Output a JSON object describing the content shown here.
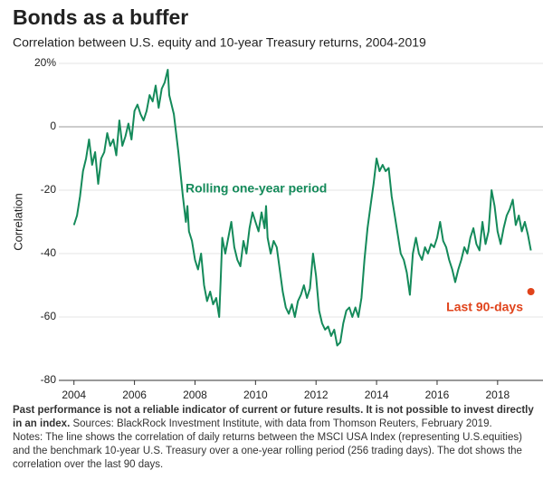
{
  "chart_data": {
    "type": "line",
    "title": "Bonds as a buffer",
    "subtitle": "Correlation between U.S. equity and 10-year Treasury returns, 2004-2019",
    "y_label": "Correlation",
    "xlim": [
      2003.5,
      2019.5
    ],
    "xticks": [
      2004,
      2006,
      2008,
      2010,
      2012,
      2014,
      2016,
      2018
    ],
    "ylim": [
      -80,
      20
    ],
    "yticks": [
      {
        "value": 20,
        "label": "20%"
      },
      0,
      -20,
      -40,
      -60,
      -80
    ],
    "grid": true,
    "series": [
      {
        "name": "Rolling one-year period",
        "color": "#148a5a",
        "x": [
          2004.0,
          2004.1,
          2004.2,
          2004.3,
          2004.4,
          2004.5,
          2004.6,
          2004.7,
          2004.8,
          2004.9,
          2005.0,
          2005.1,
          2005.2,
          2005.3,
          2005.4,
          2005.5,
          2005.6,
          2005.7,
          2005.8,
          2005.9,
          2006.0,
          2006.1,
          2006.2,
          2006.3,
          2006.4,
          2006.5,
          2006.6,
          2006.7,
          2006.8,
          2006.9,
          2007.0,
          2007.1,
          2007.15,
          2007.3,
          2007.45,
          2007.6,
          2007.7,
          2007.75,
          2007.8,
          2007.9,
          2008.0,
          2008.1,
          2008.2,
          2008.3,
          2008.4,
          2008.5,
          2008.6,
          2008.7,
          2008.8,
          2008.85,
          2008.9,
          2009.0,
          2009.2,
          2009.3,
          2009.4,
          2009.5,
          2009.6,
          2009.7,
          2009.8,
          2009.9,
          2010.0,
          2010.1,
          2010.2,
          2010.3,
          2010.35,
          2010.4,
          2010.5,
          2010.6,
          2010.7,
          2010.8,
          2010.9,
          2011.0,
          2011.1,
          2011.2,
          2011.3,
          2011.4,
          2011.5,
          2011.6,
          2011.7,
          2011.8,
          2011.9,
          2012.0,
          2012.1,
          2012.2,
          2012.3,
          2012.4,
          2012.5,
          2012.6,
          2012.7,
          2012.8,
          2012.9,
          2013.0,
          2013.1,
          2013.2,
          2013.3,
          2013.4,
          2013.5,
          2013.6,
          2013.7,
          2013.8,
          2013.9,
          2014.0,
          2014.1,
          2014.2,
          2014.3,
          2014.4,
          2014.5,
          2014.6,
          2014.7,
          2014.8,
          2014.9,
          2015.0,
          2015.1,
          2015.2,
          2015.3,
          2015.4,
          2015.5,
          2015.6,
          2015.7,
          2015.8,
          2015.9,
          2016.0,
          2016.1,
          2016.2,
          2016.3,
          2016.4,
          2016.5,
          2016.6,
          2016.7,
          2016.8,
          2016.9,
          2017.0,
          2017.1,
          2017.2,
          2017.3,
          2017.4,
          2017.5,
          2017.6,
          2017.7,
          2017.8,
          2017.9,
          2018.0,
          2018.1,
          2018.2,
          2018.3,
          2018.4,
          2018.5,
          2018.6,
          2018.7,
          2018.8,
          2018.9,
          2019.0,
          2019.1
        ],
        "values": [
          -31,
          -28,
          -22,
          -14,
          -10,
          -4,
          -12,
          -8,
          -18,
          -10,
          -8,
          -2,
          -6,
          -4,
          -9,
          2,
          -6,
          -3,
          1,
          -4,
          5,
          7,
          4,
          2,
          5,
          10,
          8,
          13,
          6,
          12,
          14,
          18,
          10,
          4,
          -8,
          -22,
          -30,
          -25,
          -33,
          -36,
          -42,
          -45,
          -40,
          -50,
          -55,
          -52,
          -56,
          -54,
          -60,
          -48,
          -35,
          -40,
          -30,
          -38,
          -42,
          -44,
          -36,
          -40,
          -32,
          -27,
          -30,
          -33,
          -27,
          -32,
          -25,
          -35,
          -40,
          -36,
          -38,
          -45,
          -52,
          -57,
          -59,
          -56,
          -60,
          -55,
          -53,
          -50,
          -54,
          -51,
          -40,
          -47,
          -58,
          -62,
          -64,
          -63,
          -66,
          -64,
          -69,
          -68,
          -62,
          -58,
          -57,
          -60,
          -57,
          -60,
          -54,
          -42,
          -32,
          -25,
          -18,
          -10,
          -14,
          -12,
          -14,
          -13,
          -22,
          -28,
          -34,
          -40,
          -42,
          -46,
          -53,
          -40,
          -35,
          -40,
          -42,
          -38,
          -40,
          -37,
          -38,
          -35,
          -30,
          -36,
          -38,
          -42,
          -45,
          -49,
          -45,
          -42,
          -38,
          -40,
          -35,
          -32,
          -37,
          -39,
          -30,
          -37,
          -33,
          -20,
          -25,
          -33,
          -37,
          -32,
          -28,
          -26,
          -23,
          -31,
          -28,
          -33,
          -30,
          -34,
          -39
        ]
      },
      {
        "name": "Last 90-days",
        "color": "#e0431b",
        "x": [
          2019.1
        ],
        "values": [
          -52
        ]
      }
    ],
    "notes_bold": "Past performance is not a reliable indicator of current or future results. It is not possible to invest directly in an index.",
    "sources": "Sources: BlackRock Investment Institute, with data from Thomson Reuters, February 2019.",
    "notes": "Notes: The line shows the correlation of daily returns between the MSCI USA Index (representing U.S.equities) and the benchmark 10-year U.S. Treasury over a one-year rolling period (256 trading days). The dot shows the correlation over the last 90 days."
  }
}
